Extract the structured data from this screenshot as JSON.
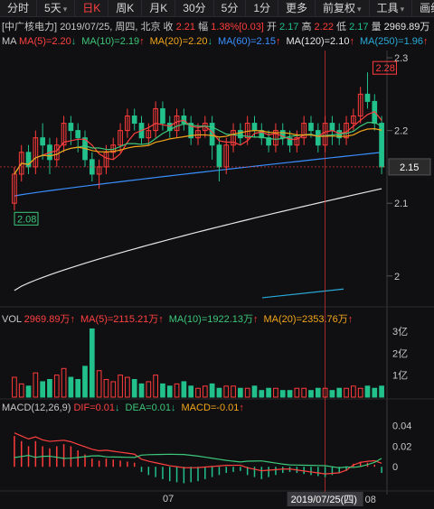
{
  "toolbar": {
    "tabs": [
      {
        "label": "分时",
        "active": false
      },
      {
        "label": "5天",
        "active": false,
        "caret": true
      },
      {
        "label": "日K",
        "active": true
      },
      {
        "label": "周K",
        "active": false
      },
      {
        "label": "月K",
        "active": false
      },
      {
        "label": "30分",
        "active": false
      },
      {
        "label": "5分",
        "active": false
      },
      {
        "label": "1分",
        "active": false
      },
      {
        "label": "更多",
        "active": false
      },
      {
        "label": "前复权",
        "active": false,
        "caret": true
      },
      {
        "label": "工具",
        "active": false,
        "caret": true
      },
      {
        "label": "画线",
        "active": false
      }
    ]
  },
  "quote": {
    "name": "[中广核电力]",
    "date": "2019/07/25, 周四, 北京",
    "close_label": "收",
    "close": "2.21",
    "change_label": "幅",
    "change": "1.38%",
    "change_extra": "[0.03]",
    "open_label": "开",
    "open": "2.17",
    "high_label": "高",
    "high": "2.22",
    "low_label": "低",
    "low": "2.17",
    "vol_label": "量",
    "vol": "2969.89万"
  },
  "ma_legend": {
    "label": "MA",
    "items": [
      {
        "text": "MA(5)=2.20",
        "color": "#ff4040",
        "arrow": "down"
      },
      {
        "text": "MA(10)=2.19",
        "color": "#3cc77a",
        "arrow": "up"
      },
      {
        "text": "MA(20)=2.20",
        "color": "#f2a51b",
        "arrow": "down"
      },
      {
        "text": "MA(60)=2.15",
        "color": "#3a8fff",
        "arrow": "up"
      },
      {
        "text": "MA(120)=2.10",
        "color": "#e6e6e6",
        "arrow": "up"
      },
      {
        "text": "MA(250)=1.96",
        "color": "#2aa9d8",
        "arrow": "up"
      }
    ]
  },
  "vol_legend": {
    "label": "VOL",
    "items": [
      {
        "text": "2969.89万",
        "color": "#ff4040",
        "arrow": "up"
      },
      {
        "text": "MA(5)=2115.21万",
        "color": "#ff4040",
        "arrow": "up"
      },
      {
        "text": "MA(10)=1922.13万",
        "color": "#3cc77a",
        "arrow": "up"
      },
      {
        "text": "MA(20)=2353.76万",
        "color": "#f2a51b",
        "arrow": "up"
      }
    ]
  },
  "macd_legend": {
    "label": "MACD(12,26,9)",
    "items": [
      {
        "text": "DIF=0.01",
        "color": "#ff4040",
        "arrow": "down"
      },
      {
        "text": "DEA=0.01",
        "color": "#3cc77a",
        "arrow": "down"
      },
      {
        "text": "MACD=-0.01",
        "color": "#f2a51b",
        "arrow": "up"
      }
    ]
  },
  "price_axis": [
    "2.3",
    "2.2",
    "2.1",
    "2"
  ],
  "current_price": "2.15",
  "max_marker": "2.28",
  "min_marker": "2.08",
  "vol_axis": [
    "3亿",
    "2亿",
    "1亿"
  ],
  "macd_axis": [
    "0.04",
    "0.02",
    "0"
  ],
  "x_labels": {
    "month": "07",
    "cursor": "2019/07/25(四)",
    "next": "08"
  },
  "chart_data": {
    "type": "candlestick",
    "ylim": [
      1.96,
      2.31
    ],
    "candles": [
      [
        2.1,
        2.14,
        2.15,
        2.09
      ],
      [
        2.14,
        2.17,
        2.18,
        2.13
      ],
      [
        2.17,
        2.15,
        2.18,
        2.14
      ],
      [
        2.15,
        2.19,
        2.2,
        2.14
      ],
      [
        2.19,
        2.18,
        2.21,
        2.16
      ],
      [
        2.18,
        2.16,
        2.19,
        2.14
      ],
      [
        2.16,
        2.18,
        2.19,
        2.15
      ],
      [
        2.18,
        2.21,
        2.22,
        2.17
      ],
      [
        2.21,
        2.2,
        2.22,
        2.18
      ],
      [
        2.2,
        2.19,
        2.21,
        2.17
      ],
      [
        2.19,
        2.16,
        2.2,
        2.15
      ],
      [
        2.16,
        2.14,
        2.17,
        2.13
      ],
      [
        2.14,
        2.15,
        2.16,
        2.12
      ],
      [
        2.15,
        2.17,
        2.18,
        2.14
      ],
      [
        2.17,
        2.18,
        2.19,
        2.16
      ],
      [
        2.18,
        2.2,
        2.21,
        2.17
      ],
      [
        2.2,
        2.22,
        2.23,
        2.19
      ],
      [
        2.22,
        2.21,
        2.23,
        2.2
      ],
      [
        2.21,
        2.19,
        2.22,
        2.18
      ],
      [
        2.19,
        2.2,
        2.21,
        2.18
      ],
      [
        2.2,
        2.23,
        2.24,
        2.19
      ],
      [
        2.23,
        2.21,
        2.24,
        2.2
      ],
      [
        2.21,
        2.2,
        2.22,
        2.19
      ],
      [
        2.2,
        2.22,
        2.23,
        2.19
      ],
      [
        2.22,
        2.21,
        2.23,
        2.2
      ],
      [
        2.21,
        2.19,
        2.22,
        2.18
      ],
      [
        2.19,
        2.2,
        2.21,
        2.18
      ],
      [
        2.2,
        2.21,
        2.22,
        2.19
      ],
      [
        2.21,
        2.18,
        2.22,
        2.16
      ],
      [
        2.18,
        2.15,
        2.19,
        2.13
      ],
      [
        2.15,
        2.18,
        2.19,
        2.14
      ],
      [
        2.18,
        2.2,
        2.21,
        2.17
      ],
      [
        2.2,
        2.19,
        2.21,
        2.18
      ],
      [
        2.19,
        2.21,
        2.22,
        2.18
      ],
      [
        2.21,
        2.2,
        2.22,
        2.19
      ],
      [
        2.2,
        2.19,
        2.21,
        2.18
      ],
      [
        2.19,
        2.18,
        2.2,
        2.17
      ],
      [
        2.18,
        2.2,
        2.21,
        2.17
      ],
      [
        2.2,
        2.19,
        2.21,
        2.18
      ],
      [
        2.19,
        2.18,
        2.2,
        2.17
      ],
      [
        2.18,
        2.19,
        2.2,
        2.17
      ],
      [
        2.19,
        2.21,
        2.22,
        2.18
      ],
      [
        2.21,
        2.2,
        2.22,
        2.19
      ],
      [
        2.2,
        2.18,
        2.21,
        2.17
      ],
      [
        2.18,
        2.21,
        2.22,
        2.17
      ],
      [
        2.21,
        2.2,
        2.22,
        2.18
      ],
      [
        2.2,
        2.19,
        2.21,
        2.18
      ],
      [
        2.19,
        2.21,
        2.22,
        2.18
      ],
      [
        2.21,
        2.22,
        2.23,
        2.2
      ],
      [
        2.22,
        2.25,
        2.26,
        2.21
      ],
      [
        2.25,
        2.24,
        2.28,
        2.23
      ],
      [
        2.24,
        2.21,
        2.25,
        2.2
      ],
      [
        2.21,
        2.15,
        2.22,
        2.14
      ]
    ],
    "volumes": [
      0.9,
      0.6,
      0.5,
      1.1,
      0.7,
      0.8,
      1.0,
      1.3,
      0.9,
      0.8,
      1.4,
      3.1,
      1.2,
      0.8,
      0.7,
      1.0,
      0.9,
      0.8,
      0.6,
      0.7,
      1.0,
      0.6,
      0.5,
      0.6,
      0.7,
      0.5,
      0.4,
      0.5,
      0.6,
      0.4,
      0.5,
      0.5,
      0.4,
      0.4,
      0.5,
      0.3,
      0.4,
      0.4,
      0.3,
      0.3,
      0.4,
      0.4,
      0.3,
      0.4,
      0.4,
      0.3,
      0.4,
      0.4,
      0.5,
      0.4,
      0.5,
      0.4,
      0.5
    ],
    "macd_hist": [
      0.03,
      0.025,
      0.02,
      0.025,
      0.02,
      0.018,
      0.02,
      0.022,
      0.02,
      0.016,
      0.012,
      0.008,
      0.006,
      0.008,
      0.007,
      0.006,
      0.005,
      0.004,
      -0.005,
      -0.008,
      -0.01,
      -0.012,
      -0.014,
      -0.015,
      -0.016,
      -0.015,
      -0.014,
      -0.012,
      -0.01,
      -0.008,
      -0.006,
      -0.005,
      -0.004,
      -0.008,
      -0.01,
      -0.012,
      -0.01,
      -0.008,
      -0.006,
      -0.005,
      -0.006,
      -0.007,
      -0.008,
      -0.009,
      -0.01,
      -0.008,
      -0.006,
      -0.004,
      0.003,
      0.005,
      0.004,
      0.002,
      -0.006
    ]
  },
  "colors": {
    "up": "#ff3b3b",
    "down": "#22c08a",
    "bg": "#101012"
  }
}
